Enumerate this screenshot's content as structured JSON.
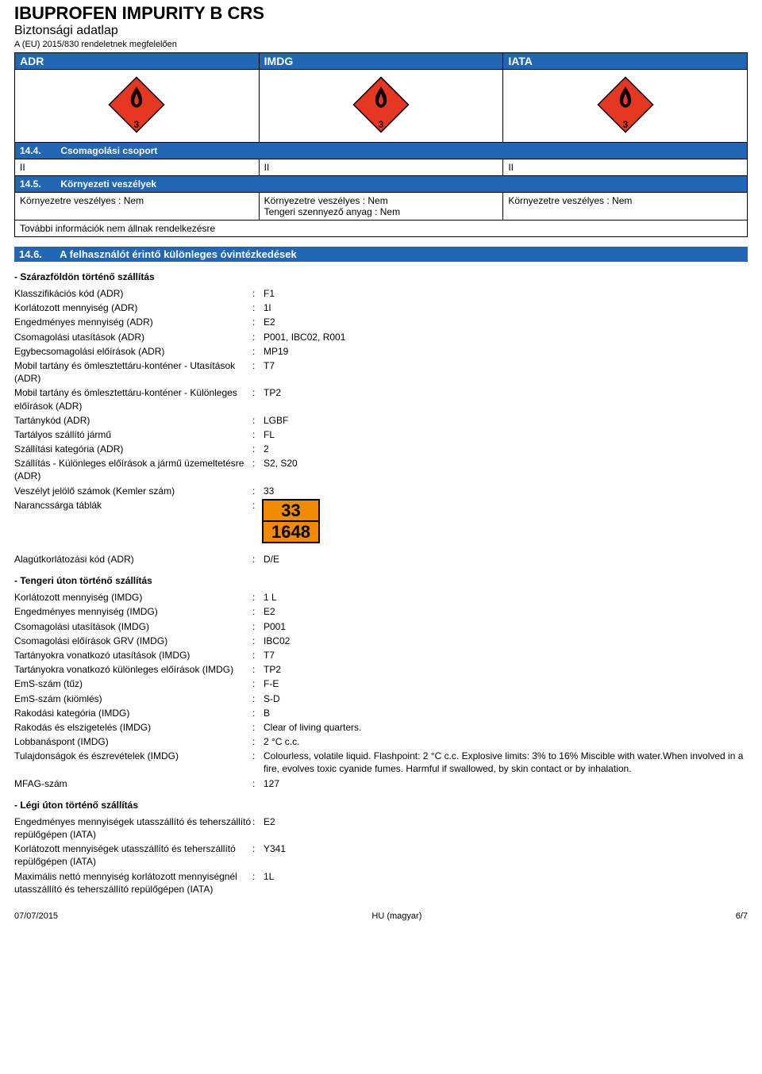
{
  "header": {
    "title": "IBUPROFEN IMPURITY B CRS",
    "subtitle": "Biztonsági adatlap",
    "regulation": "A (EU) 2015/830 rendeletnek megfelelően"
  },
  "transport_table": {
    "headers": [
      "ADR",
      "IMDG",
      "IATA"
    ],
    "hazard_number": "3",
    "section_14_4": {
      "num": "14.4.",
      "title": "Csomagolási csoport"
    },
    "packaging_group": [
      "II",
      "II",
      "II"
    ],
    "section_14_5": {
      "num": "14.5.",
      "title": "Környezeti veszélyek"
    },
    "env_hazard_adr": "Környezetre veszélyes : Nem",
    "env_hazard_imdg_line1": "Környezetre veszélyes : Nem",
    "env_hazard_imdg_line2": "Tengeri szennyező anyag : Nem",
    "env_hazard_iata": "Környezetre veszélyes : Nem",
    "no_further_info": "További információk nem állnak rendelkezésre"
  },
  "section_14_6": {
    "num": "14.6.",
    "title": "A felhasználót érintő különleges óvintézkedések"
  },
  "land": {
    "heading": "- Szárazföldön történő szállítás",
    "rows": [
      {
        "label": "Klasszifikációs kód (ADR)",
        "value": "F1"
      },
      {
        "label": "Korlátozott mennyiség (ADR)",
        "value": "1l"
      },
      {
        "label": "Engedményes mennyiség (ADR)",
        "value": "E2"
      },
      {
        "label": "Csomagolási utasítások (ADR)",
        "value": "P001, IBC02, R001"
      },
      {
        "label": "Egybecsomagolási előírások (ADR)",
        "value": "MP19"
      },
      {
        "label": "Mobil tartány és ömlesztettáru-konténer - Utasítások (ADR)",
        "value": "T7"
      },
      {
        "label": "Mobil tartány és ömlesztettáru-konténer - Különleges előírások (ADR)",
        "value": "TP2"
      },
      {
        "label": "Tartánykód (ADR)",
        "value": "LGBF"
      },
      {
        "label": "Tartályos szállító jármű",
        "value": "FL"
      },
      {
        "label": "Szállítási kategória (ADR)",
        "value": "2"
      },
      {
        "label": "Szállítás - Különleges előírások a jármű üzemeltetésre (ADR)",
        "value": "S2, S20"
      },
      {
        "label": "Veszélyt jelölő számok (Kemler szám)",
        "value": "33"
      }
    ],
    "plate_label": "Narancssárga táblák",
    "plate_top": "33",
    "plate_bottom": "1648",
    "tunnel": {
      "label": "Alagútkorlátozási kód (ADR)",
      "value": "D/E"
    }
  },
  "sea": {
    "heading": "- Tengeri úton történő szállítás",
    "rows": [
      {
        "label": "Korlátozott mennyiség (IMDG)",
        "value": "1 L"
      },
      {
        "label": "Engedményes mennyiség (IMDG)",
        "value": "E2"
      },
      {
        "label": "Csomagolási utasítások (IMDG)",
        "value": "P001"
      },
      {
        "label": "Csomagolási előírások GRV (IMDG)",
        "value": "IBC02"
      },
      {
        "label": "Tartányokra vonatkozó utasítások (IMDG)",
        "value": "T7"
      },
      {
        "label": "Tartányokra vonatkozó különleges előírások (IMDG)",
        "value": "TP2"
      },
      {
        "label": "EmS-szám (tűz)",
        "value": "F-E"
      },
      {
        "label": "EmS-szám (kiömlés)",
        "value": "S-D"
      },
      {
        "label": "Rakodási kategória (IMDG)",
        "value": "B"
      },
      {
        "label": "Rakodás és elszigetelés (IMDG)",
        "value": "Clear of living quarters."
      },
      {
        "label": "Lobbanáspont (IMDG)",
        "value": "2 °C c.c."
      },
      {
        "label": "Tulajdonságok és észrevételek (IMDG)",
        "value": "Colourless, volatile liquid. Flashpoint: 2 °C c.c.  Explosive limits: 3% to 16%  Miscible with water.When involved in a fire, evolves toxic cyanide fumes. Harmful if swallowed, by skin contact or by inhalation."
      },
      {
        "label": "MFAG-szám",
        "value": "127"
      }
    ]
  },
  "air": {
    "heading": "- Légi úton történő szállítás",
    "rows": [
      {
        "label": "Engedményes mennyiségek utasszállító és teherszállító repülőgépen (IATA)",
        "value": "E2"
      },
      {
        "label": "Korlátozott mennyiségek utasszállító és teherszállító repülőgépen (IATA)",
        "value": "Y341"
      },
      {
        "label": "Maximális nettó mennyiség korlátozott mennyiségnél utasszállító és teherszállító repülőgépen (IATA)",
        "value": "1L"
      }
    ]
  },
  "footer": {
    "date": "07/07/2015",
    "lang": "HU (magyar)",
    "page": "6/7"
  },
  "colors": {
    "header_blue": "#2167b3",
    "hazard_red": "#e73723",
    "hazard_orange": "#f08a00"
  }
}
